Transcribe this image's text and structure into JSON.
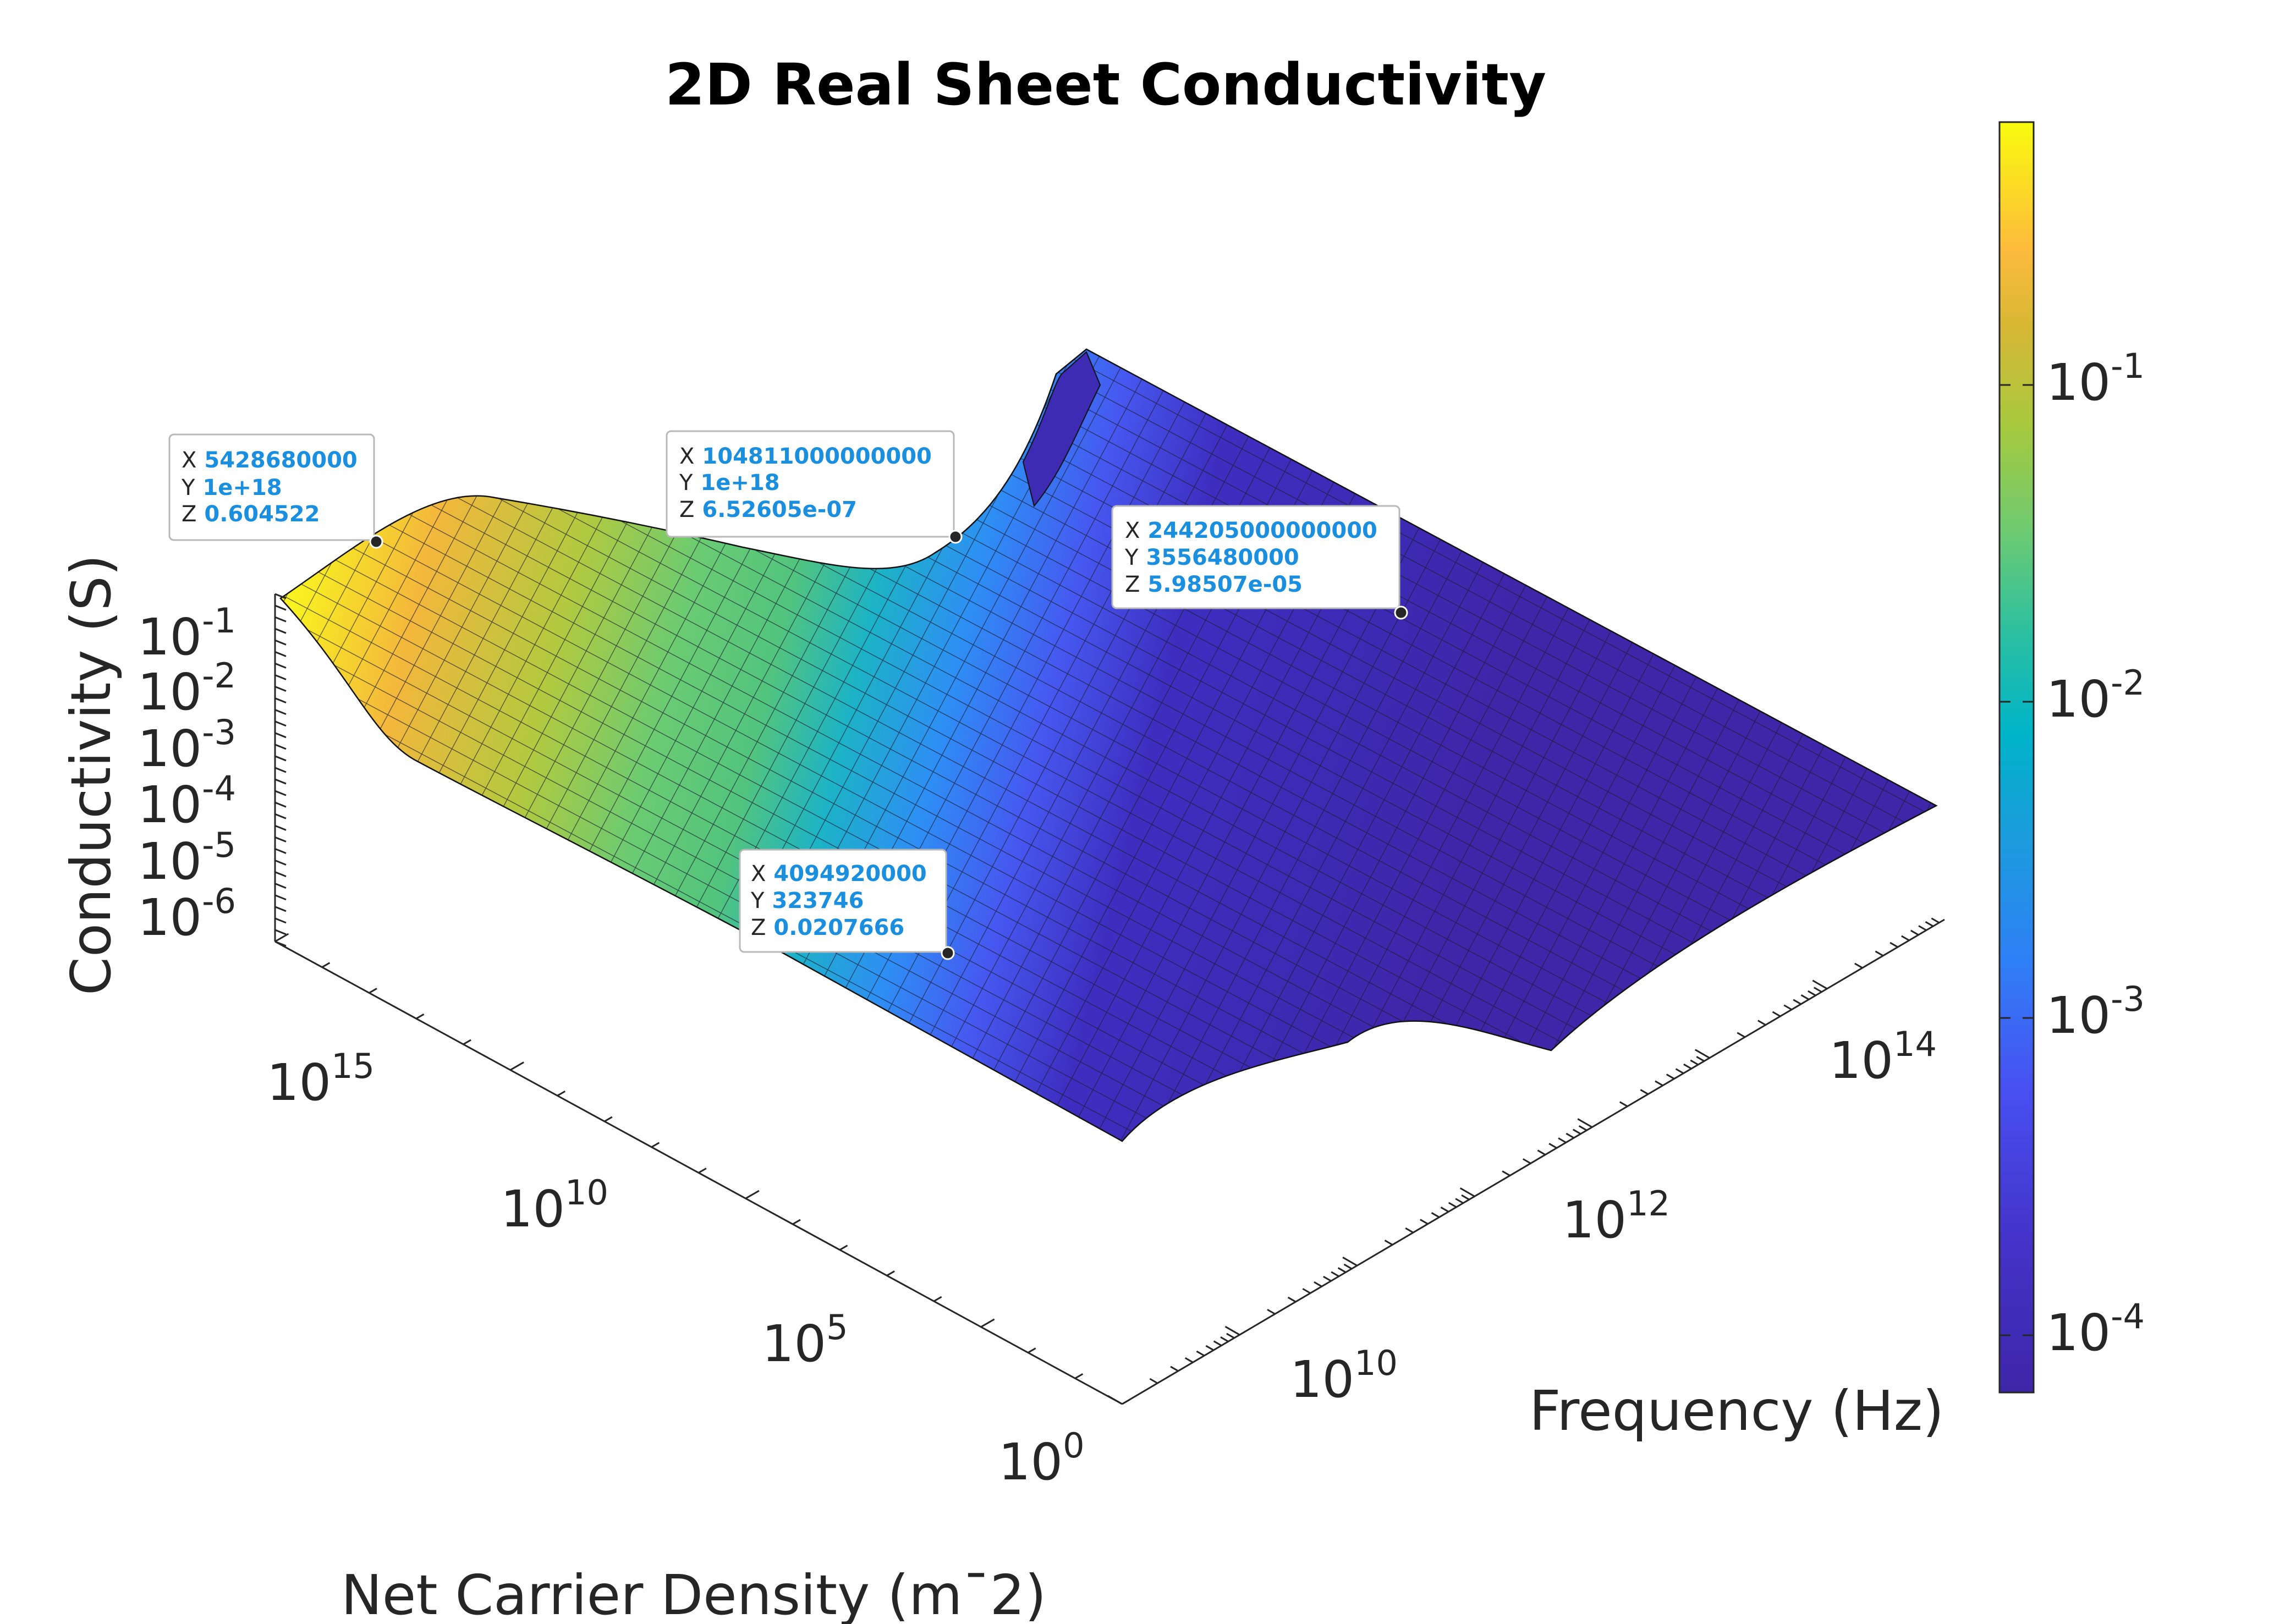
{
  "chart_data": {
    "type": "surface",
    "title": "2D Real Sheet Conductivity",
    "xlabel": "Frequency (Hz)",
    "ylabel": "Net Carrier Density (m¯2)",
    "zlabel": "Conductivity (S)",
    "x_scale": "log",
    "y_scale": "log",
    "z_scale": "log",
    "colormap": "parula",
    "x_ticks": [
      {
        "base": "10",
        "exp": "10"
      },
      {
        "base": "10",
        "exp": "12"
      },
      {
        "base": "10",
        "exp": "14"
      }
    ],
    "y_ticks": [
      {
        "base": "10",
        "exp": "0"
      },
      {
        "base": "10",
        "exp": "5"
      },
      {
        "base": "10",
        "exp": "10"
      },
      {
        "base": "10",
        "exp": "15"
      }
    ],
    "z_ticks": [
      {
        "base": "10",
        "exp": "-1"
      },
      {
        "base": "10",
        "exp": "-2"
      },
      {
        "base": "10",
        "exp": "-3"
      },
      {
        "base": "10",
        "exp": "-4"
      },
      {
        "base": "10",
        "exp": "-5"
      },
      {
        "base": "10",
        "exp": "-6"
      }
    ],
    "colorbar_ticks": [
      {
        "base": "10",
        "exp": "-1"
      },
      {
        "base": "10",
        "exp": "-2"
      },
      {
        "base": "10",
        "exp": "-3"
      },
      {
        "base": "10",
        "exp": "-4"
      }
    ],
    "datatips": [
      {
        "x": "5428680000",
        "y": "1e+18",
        "z": "0.604522"
      },
      {
        "x": "104811000000000",
        "y": "1e+18",
        "z": "6.52605e-07"
      },
      {
        "x": "244205000000000",
        "y": "3556480000",
        "z": "5.98507e-05"
      },
      {
        "x": "4094920000",
        "y": "323746",
        "z": "0.0207666"
      }
    ],
    "datatip_prefix": {
      "x": "X",
      "y": "Y",
      "z": "Z"
    }
  }
}
